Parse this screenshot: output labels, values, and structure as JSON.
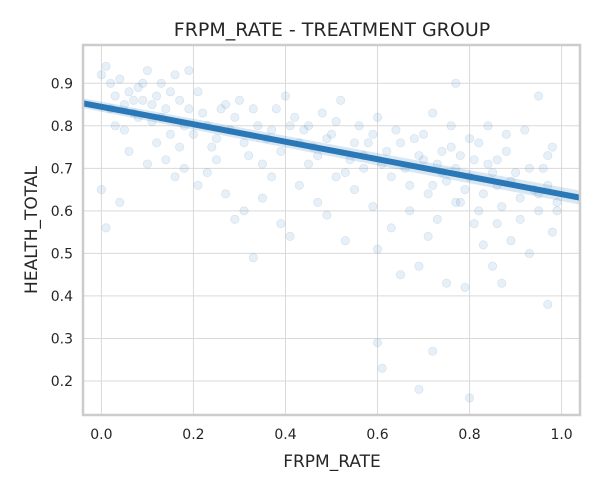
{
  "chart_data": {
    "type": "scatter",
    "title": "FRPM_RATE - TREATMENT GROUP",
    "xlabel": "FRPM_RATE",
    "ylabel": "HEALTH_TOTAL",
    "xlim": [
      -0.04,
      1.04
    ],
    "ylim": [
      0.12,
      0.99
    ],
    "xticks": [
      "0.0",
      "0.2",
      "0.4",
      "0.6",
      "0.8",
      "1.0"
    ],
    "yticks": [
      "0.2",
      "0.3",
      "0.4",
      "0.5",
      "0.6",
      "0.7",
      "0.8",
      "0.9"
    ],
    "grid": true,
    "trendline": {
      "x": [
        -0.04,
        1.04
      ],
      "y": [
        0.853,
        0.631
      ]
    },
    "series": [
      {
        "points": [
          [
            0.0,
            0.92
          ],
          [
            0.01,
            0.94
          ],
          [
            0.02,
            0.9
          ],
          [
            0.03,
            0.87
          ],
          [
            0.04,
            0.91
          ],
          [
            0.05,
            0.85
          ],
          [
            0.06,
            0.88
          ],
          [
            0.07,
            0.83
          ],
          [
            0.08,
            0.89
          ],
          [
            0.09,
            0.86
          ],
          [
            0.1,
            0.93
          ],
          [
            0.11,
            0.81
          ],
          [
            0.12,
            0.87
          ],
          [
            0.13,
            0.9
          ],
          [
            0.14,
            0.84
          ],
          [
            0.15,
            0.78
          ],
          [
            0.16,
            0.92
          ],
          [
            0.17,
            0.86
          ],
          [
            0.18,
            0.8
          ],
          [
            0.19,
            0.93
          ],
          [
            0.0,
            0.65
          ],
          [
            0.01,
            0.56
          ],
          [
            0.04,
            0.62
          ],
          [
            0.03,
            0.8
          ],
          [
            0.06,
            0.74
          ],
          [
            0.08,
            0.82
          ],
          [
            0.1,
            0.71
          ],
          [
            0.12,
            0.76
          ],
          [
            0.14,
            0.72
          ],
          [
            0.16,
            0.68
          ],
          [
            0.18,
            0.7
          ],
          [
            0.2,
            0.78
          ],
          [
            0.22,
            0.83
          ],
          [
            0.24,
            0.75
          ],
          [
            0.26,
            0.84
          ],
          [
            0.28,
            0.79
          ],
          [
            0.3,
            0.86
          ],
          [
            0.32,
            0.73
          ],
          [
            0.34,
            0.8
          ],
          [
            0.36,
            0.77
          ],
          [
            0.21,
            0.66
          ],
          [
            0.23,
            0.69
          ],
          [
            0.25,
            0.72
          ],
          [
            0.27,
            0.64
          ],
          [
            0.29,
            0.58
          ],
          [
            0.31,
            0.6
          ],
          [
            0.33,
            0.49
          ],
          [
            0.35,
            0.63
          ],
          [
            0.37,
            0.68
          ],
          [
            0.39,
            0.57
          ],
          [
            0.38,
            0.84
          ],
          [
            0.4,
            0.87
          ],
          [
            0.42,
            0.82
          ],
          [
            0.44,
            0.79
          ],
          [
            0.46,
            0.75
          ],
          [
            0.48,
            0.83
          ],
          [
            0.5,
            0.78
          ],
          [
            0.52,
            0.86
          ],
          [
            0.54,
            0.72
          ],
          [
            0.56,
            0.8
          ],
          [
            0.41,
            0.54
          ],
          [
            0.43,
            0.66
          ],
          [
            0.45,
            0.71
          ],
          [
            0.47,
            0.62
          ],
          [
            0.49,
            0.59
          ],
          [
            0.51,
            0.68
          ],
          [
            0.53,
            0.53
          ],
          [
            0.55,
            0.65
          ],
          [
            0.57,
            0.7
          ],
          [
            0.59,
            0.61
          ],
          [
            0.58,
            0.76
          ],
          [
            0.6,
            0.82
          ],
          [
            0.62,
            0.74
          ],
          [
            0.64,
            0.79
          ],
          [
            0.66,
            0.7
          ],
          [
            0.68,
            0.77
          ],
          [
            0.7,
            0.72
          ],
          [
            0.72,
            0.83
          ],
          [
            0.74,
            0.69
          ],
          [
            0.76,
            0.75
          ],
          [
            0.6,
            0.51
          ],
          [
            0.6,
            0.29
          ],
          [
            0.61,
            0.23
          ],
          [
            0.63,
            0.56
          ],
          [
            0.65,
            0.45
          ],
          [
            0.67,
            0.6
          ],
          [
            0.69,
            0.47
          ],
          [
            0.71,
            0.54
          ],
          [
            0.72,
            0.27
          ],
          [
            0.73,
            0.58
          ],
          [
            0.75,
            0.43
          ],
          [
            0.77,
            0.62
          ],
          [
            0.79,
            0.42
          ],
          [
            0.81,
            0.57
          ],
          [
            0.83,
            0.52
          ],
          [
            0.85,
            0.47
          ],
          [
            0.87,
            0.43
          ],
          [
            0.86,
            0.57
          ],
          [
            0.89,
            0.53
          ],
          [
            0.69,
            0.18
          ],
          [
            0.78,
            0.73
          ],
          [
            0.8,
            0.68
          ],
          [
            0.82,
            0.76
          ],
          [
            0.84,
            0.71
          ],
          [
            0.86,
            0.66
          ],
          [
            0.88,
            0.74
          ],
          [
            0.9,
            0.69
          ],
          [
            0.92,
            0.79
          ],
          [
            0.94,
            0.65
          ],
          [
            0.96,
            0.7
          ],
          [
            0.8,
            0.16
          ],
          [
            0.77,
            0.9
          ],
          [
            0.95,
            0.87
          ],
          [
            0.97,
            0.38
          ],
          [
            0.98,
            0.55
          ],
          [
            0.99,
            0.6
          ],
          [
            0.93,
            0.5
          ],
          [
            0.91,
            0.58
          ],
          [
            0.95,
            0.64
          ],
          [
            0.97,
            0.73
          ],
          [
            0.02,
            0.84
          ],
          [
            0.05,
            0.79
          ],
          [
            0.07,
            0.86
          ],
          [
            0.09,
            0.9
          ],
          [
            0.11,
            0.85
          ],
          [
            0.13,
            0.82
          ],
          [
            0.15,
            0.88
          ],
          [
            0.17,
            0.75
          ],
          [
            0.19,
            0.84
          ],
          [
            0.21,
            0.88
          ],
          [
            0.23,
            0.8
          ],
          [
            0.25,
            0.77
          ],
          [
            0.27,
            0.85
          ],
          [
            0.29,
            0.82
          ],
          [
            0.31,
            0.76
          ],
          [
            0.33,
            0.84
          ],
          [
            0.35,
            0.71
          ],
          [
            0.37,
            0.79
          ],
          [
            0.39,
            0.74
          ],
          [
            0.41,
            0.8
          ],
          [
            0.43,
            0.76
          ],
          [
            0.45,
            0.8
          ],
          [
            0.47,
            0.73
          ],
          [
            0.49,
            0.77
          ],
          [
            0.51,
            0.81
          ],
          [
            0.53,
            0.69
          ],
          [
            0.55,
            0.76
          ],
          [
            0.57,
            0.73
          ],
          [
            0.59,
            0.78
          ],
          [
            0.61,
            0.71
          ],
          [
            0.63,
            0.68
          ],
          [
            0.65,
            0.76
          ],
          [
            0.67,
            0.66
          ],
          [
            0.69,
            0.73
          ],
          [
            0.71,
            0.64
          ],
          [
            0.73,
            0.71
          ],
          [
            0.75,
            0.67
          ],
          [
            0.77,
            0.7
          ],
          [
            0.79,
            0.65
          ],
          [
            0.81,
            0.72
          ],
          [
            0.83,
            0.64
          ],
          [
            0.85,
            0.69
          ],
          [
            0.87,
            0.61
          ],
          [
            0.89,
            0.67
          ],
          [
            0.91,
            0.63
          ],
          [
            0.93,
            0.7
          ],
          [
            0.95,
            0.6
          ],
          [
            0.97,
            0.66
          ],
          [
            0.99,
            0.62
          ],
          [
            0.98,
            0.75
          ],
          [
            0.7,
            0.78
          ],
          [
            0.72,
            0.66
          ],
          [
            0.74,
            0.74
          ],
          [
            0.76,
            0.8
          ],
          [
            0.78,
            0.62
          ],
          [
            0.8,
            0.77
          ],
          [
            0.82,
            0.6
          ],
          [
            0.84,
            0.8
          ],
          [
            0.86,
            0.72
          ],
          [
            0.88,
            0.78
          ]
        ]
      }
    ]
  }
}
